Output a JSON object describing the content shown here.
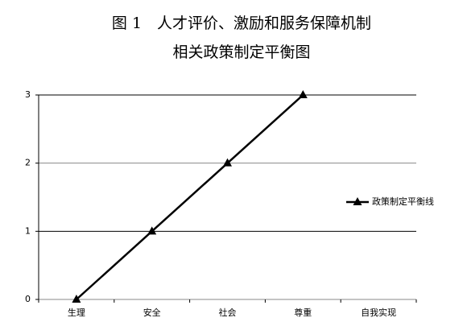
{
  "chart_data": {
    "type": "line",
    "title": "图 1　人才评价、激励和服务保障机制",
    "subtitle": "相关政策制定平衡图",
    "categories": [
      "生理",
      "安全",
      "社会",
      "尊重",
      "自我实现"
    ],
    "series": [
      {
        "name": "政策制定平衡线",
        "color": "#000000",
        "values": [
          0,
          1,
          2,
          3,
          null
        ]
      }
    ],
    "ylim": [
      0,
      3
    ],
    "yticks": [
      0,
      1,
      2,
      3
    ],
    "grid": true,
    "legend": "right"
  }
}
